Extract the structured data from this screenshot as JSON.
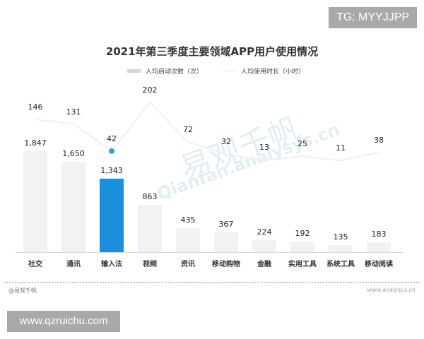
{
  "overlay": {
    "tg_badge": "TG: MYYJJPP",
    "site_badge": "www.qzruichu.com"
  },
  "footer": {
    "source_left": "@易观千帆",
    "source_right": "www.analysys.cn"
  },
  "watermark": {
    "cn": "易观千帆",
    "en": "Qianfan.analysys.cn"
  },
  "colors": {
    "bar_default": "#f2f2f2",
    "bar_highlight": "#1a8fdc",
    "line": "#f0f0f0",
    "marker_highlight": "#2aa3c4"
  },
  "chart_data": {
    "type": "bar",
    "title": "2021年第三季度主要领域APP用户使用情况",
    "legend": [
      "人均启动次数（次）",
      "人均使用时长（小时）"
    ],
    "legend_position": "top",
    "categories": [
      "社交",
      "通讯",
      "输入法",
      "视频",
      "资讯",
      "移动购物",
      "金融",
      "实用工具",
      "系统工具",
      "移动阅读"
    ],
    "series": [
      {
        "name": "人均启动次数（次）",
        "type": "bar",
        "values": [
          1847,
          1650,
          1343,
          863,
          435,
          367,
          224,
          192,
          135,
          183
        ],
        "labels": [
          "1,847",
          "1,650",
          "1,343",
          "863",
          "435",
          "367",
          "224",
          "192",
          "135",
          "183"
        ]
      },
      {
        "name": "人均使用时长（小时）",
        "type": "line",
        "values": [
          146,
          131,
          42,
          202,
          72,
          32,
          13,
          25,
          11,
          38
        ],
        "labels": [
          "146",
          "131",
          "42",
          "202",
          "72",
          "32",
          "13",
          "25",
          "11",
          "38"
        ]
      }
    ],
    "highlighted_category": "输入法",
    "xlabel": "",
    "ylabel": "",
    "grid": false
  }
}
